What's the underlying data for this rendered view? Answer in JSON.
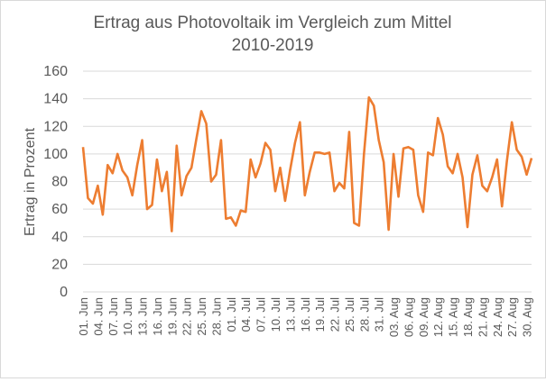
{
  "chart_data": {
    "type": "line",
    "title_line1": "Ertrag aus Photovoltaik im Vergleich zum Mittel",
    "title_line2": "2010-2019",
    "xlabel": "",
    "ylabel": "Ertrag in Prozent",
    "ylim": [
      0,
      160
    ],
    "y_ticks": [
      0,
      20,
      40,
      60,
      80,
      100,
      120,
      140,
      160
    ],
    "grid": true,
    "line_color": "#ED7D31",
    "x_tick_labels": [
      "01. Jun",
      "04. Jun",
      "07. Jun",
      "10. Jun",
      "13. Jun",
      "16. Jun",
      "19. Jun",
      "22. Jun",
      "25. Jun",
      "28. Jun",
      "01. Jul",
      "04. Jul",
      "07. Jul",
      "10. Jul",
      "13. Jul",
      "16. Jul",
      "19. Jul",
      "22. Jul",
      "25. Jul",
      "28. Jul",
      "31. Jul",
      "03. Aug",
      "06. Aug",
      "09. Aug",
      "12. Aug",
      "15. Aug",
      "18. Aug",
      "21. Aug",
      "24. Aug",
      "27. Aug",
      "30. Aug"
    ],
    "series": [
      {
        "values": [
          105,
          68,
          64,
          77,
          56,
          92,
          86,
          100,
          88,
          83,
          70,
          92,
          110,
          60,
          63,
          96,
          73,
          87,
          44,
          106,
          70,
          84,
          90,
          111,
          131,
          122,
          80,
          85,
          110,
          53,
          54,
          48,
          59,
          58,
          96,
          83,
          93,
          108,
          103,
          73,
          90,
          66,
          88,
          108,
          123,
          70,
          87,
          101,
          101,
          100,
          101,
          73,
          79,
          75,
          116,
          50,
          48,
          100,
          141,
          135,
          110,
          94,
          45,
          100,
          69,
          104,
          105,
          103,
          70,
          58,
          101,
          99,
          126,
          114,
          91,
          86,
          100,
          83,
          47,
          85,
          99,
          77,
          73,
          83,
          96,
          62,
          95,
          123,
          103,
          98,
          85,
          97
        ]
      }
    ]
  }
}
